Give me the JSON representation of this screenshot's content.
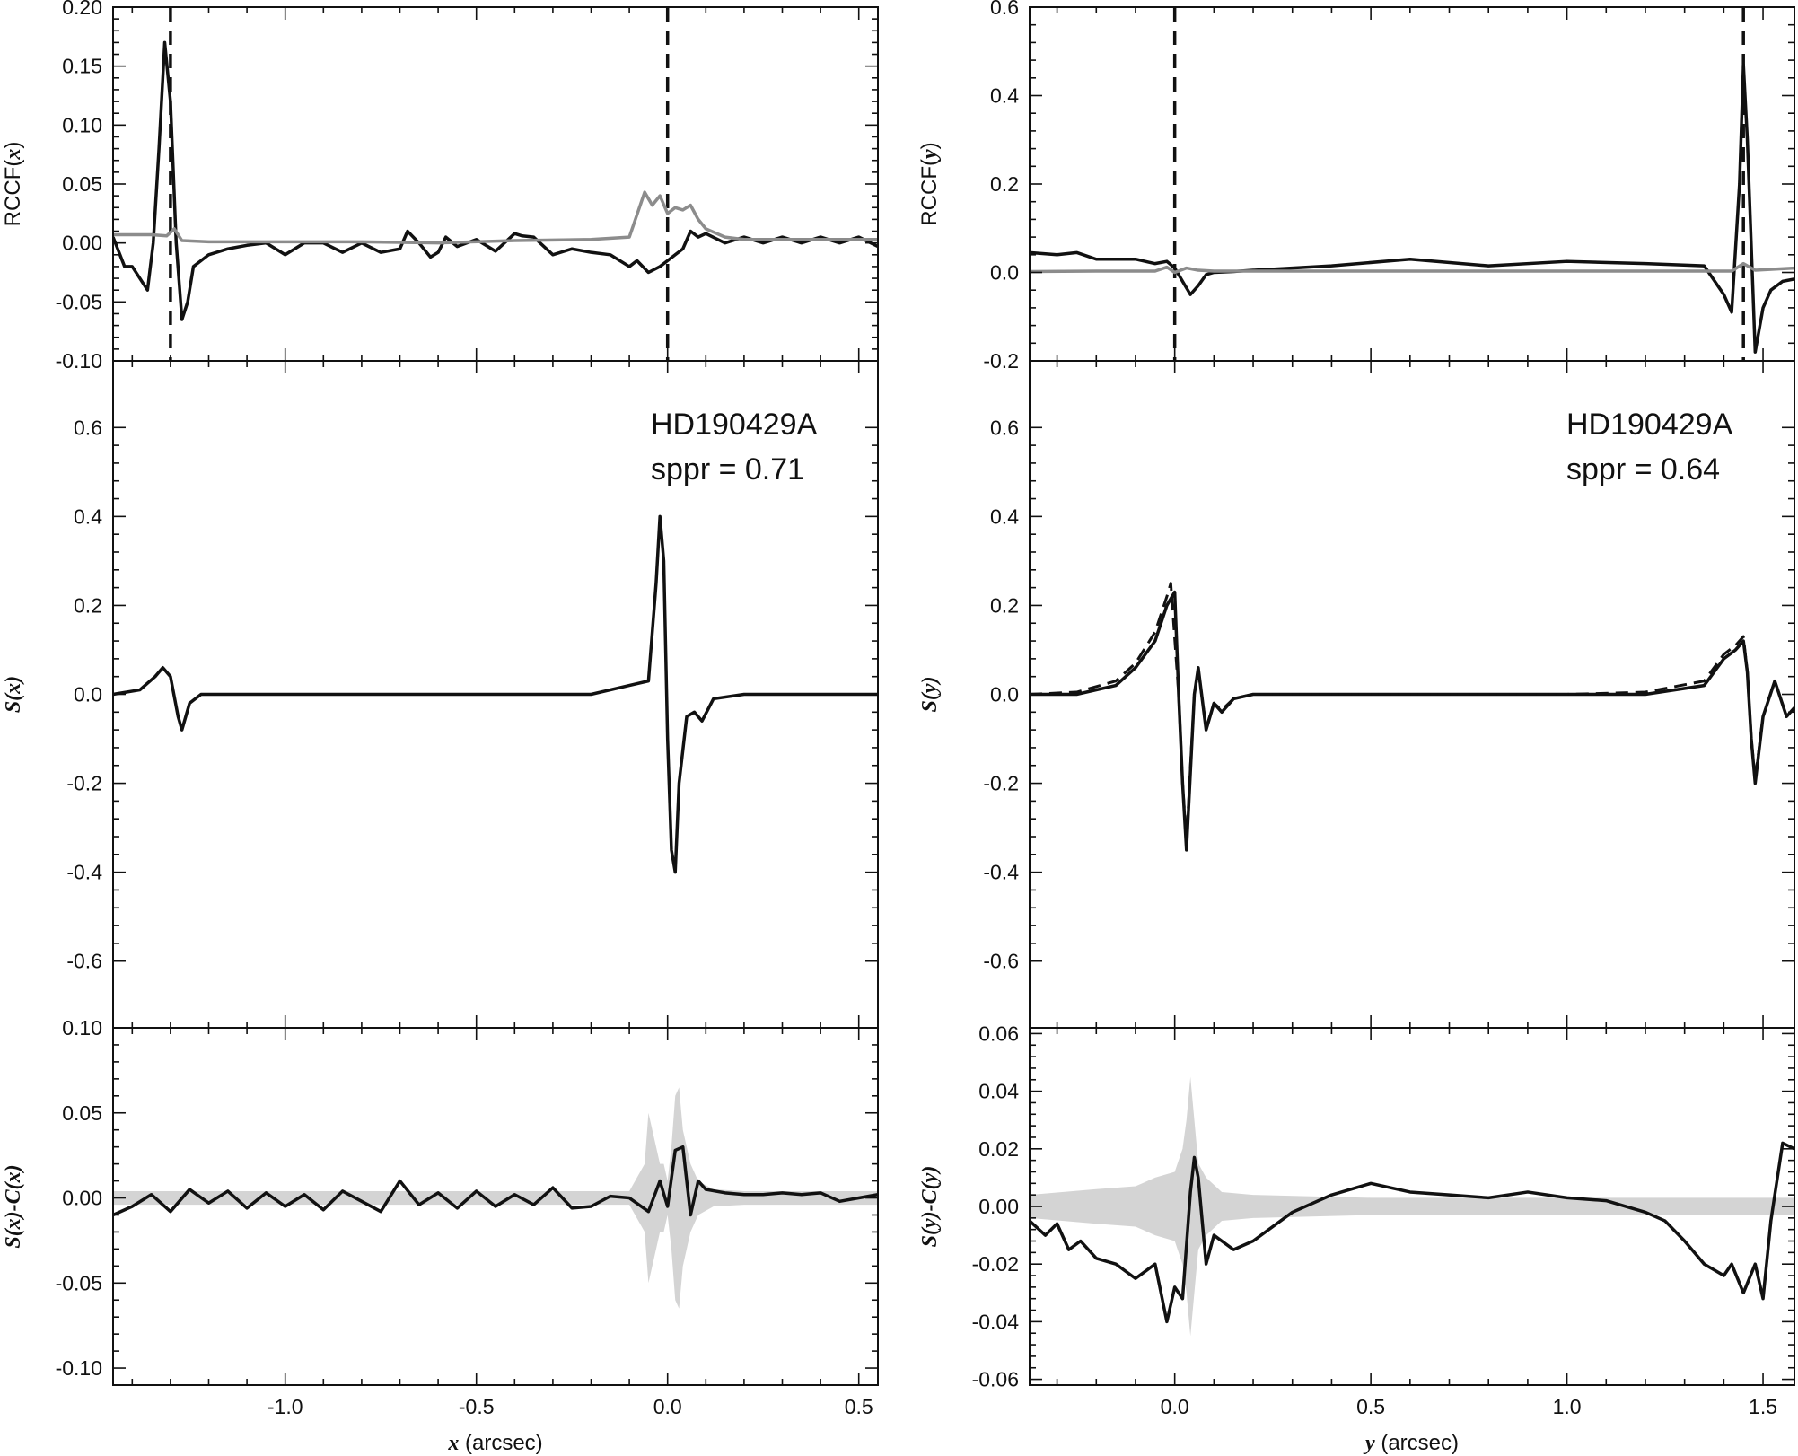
{
  "figure": {
    "left": {
      "xaxis": {
        "range": [
          -1.45,
          0.55
        ],
        "major_ticks": [
          -1.0,
          -0.5,
          0.0,
          0.5
        ],
        "tick_labels": [
          "-1.0",
          "-0.5",
          "0.0",
          "0.5"
        ],
        "minor_step": 0.1,
        "label_var": "x",
        "label_unit": " (arcsec)"
      },
      "panels": [
        {
          "id": "rccf-x",
          "ylabel_pre": "RCCF(",
          "ylabel_var": "x",
          "ylabel_post": ")",
          "ylim": [
            -0.1,
            0.2
          ],
          "yticks": [
            -0.1,
            -0.05,
            0.0,
            0.05,
            0.1,
            0.15,
            0.2
          ],
          "ytick_labels": [
            "-0.10",
            "-0.05",
            "0.00",
            "0.05",
            "0.10",
            "0.15",
            "0.20"
          ],
          "vlines": [
            -1.3,
            0.0
          ]
        },
        {
          "id": "s-x",
          "ylabel_pre": "",
          "ylabel_var": "S(x)",
          "ylabel_post": "",
          "ylim": [
            -0.75,
            0.75
          ],
          "yticks": [
            -0.6,
            -0.4,
            -0.2,
            0.0,
            0.2,
            0.4,
            0.6
          ],
          "ytick_labels": [
            "-0.6",
            "-0.4",
            "-0.2",
            "0.0",
            "0.2",
            "0.4",
            "0.6"
          ],
          "annotation": [
            "HD190429A",
            "sppr = 0.71"
          ]
        },
        {
          "id": "resid-x",
          "ylabel_pre": "",
          "ylabel_var": "S(x)-C(x)",
          "ylabel_post": "",
          "ylim": [
            -0.11,
            0.1
          ],
          "yticks": [
            -0.1,
            -0.05,
            0.0,
            0.05,
            0.1
          ],
          "ytick_labels": [
            "-0.10",
            "-0.05",
            "0.00",
            "0.05",
            "0.10"
          ]
        }
      ]
    },
    "right": {
      "xaxis": {
        "range": [
          -0.37,
          1.58
        ],
        "major_ticks": [
          0.0,
          0.5,
          1.0,
          1.5
        ],
        "tick_labels": [
          "0.0",
          "0.5",
          "1.0",
          "1.5"
        ],
        "minor_step": 0.1,
        "label_var": "y",
        "label_unit": " (arcsec)"
      },
      "panels": [
        {
          "id": "rccf-y",
          "ylabel_pre": "RCCF(",
          "ylabel_var": "y",
          "ylabel_post": ")",
          "ylim": [
            -0.2,
            0.6
          ],
          "yticks": [
            -0.2,
            0.0,
            0.2,
            0.4,
            0.6
          ],
          "ytick_labels": [
            "-0.2",
            "0.0",
            "0.2",
            "0.4",
            "0.6"
          ],
          "vlines": [
            0.0,
            1.45
          ]
        },
        {
          "id": "s-y",
          "ylabel_pre": "",
          "ylabel_var": "S(y)",
          "ylabel_post": "",
          "ylim": [
            -0.75,
            0.75
          ],
          "yticks": [
            -0.6,
            -0.4,
            -0.2,
            0.0,
            0.2,
            0.4,
            0.6
          ],
          "ytick_labels": [
            "-0.6",
            "-0.4",
            "-0.2",
            "0.0",
            "0.2",
            "0.4",
            "0.6"
          ],
          "annotation": [
            "HD190429A",
            "sppr = 0.64"
          ]
        },
        {
          "id": "resid-y",
          "ylabel_pre": "",
          "ylabel_var": "S(y)-C(y)",
          "ylabel_post": "",
          "ylim": [
            -0.062,
            0.062
          ],
          "yticks": [
            -0.06,
            -0.04,
            -0.02,
            0.0,
            0.02,
            0.04,
            0.06
          ],
          "ytick_labels": [
            "-0.06",
            "-0.04",
            "-0.02",
            "0.00",
            "0.02",
            "0.04",
            "0.06"
          ]
        }
      ]
    }
  },
  "chart_data": [
    {
      "type": "line",
      "panel": "rccf-x",
      "series": [
        {
          "style": "black",
          "x": [
            -1.45,
            -1.42,
            -1.4,
            -1.38,
            -1.36,
            -1.345,
            -1.33,
            -1.315,
            -1.3,
            -1.285,
            -1.27,
            -1.255,
            -1.24,
            -1.22,
            -1.2,
            -1.18,
            -1.15,
            -1.1,
            -1.05,
            -1.0,
            -0.95,
            -0.9,
            -0.85,
            -0.8,
            -0.75,
            -0.7,
            -0.68,
            -0.65,
            -0.62,
            -0.6,
            -0.58,
            -0.55,
            -0.5,
            -0.45,
            -0.4,
            -0.38,
            -0.35,
            -0.3,
            -0.25,
            -0.2,
            -0.15,
            -0.1,
            -0.08,
            -0.05,
            -0.02,
            0.0,
            0.02,
            0.04,
            0.06,
            0.08,
            0.1,
            0.15,
            0.2,
            0.25,
            0.3,
            0.35,
            0.4,
            0.45,
            0.5,
            0.55
          ],
          "y": [
            0.005,
            -0.02,
            -0.02,
            -0.03,
            -0.04,
            0.0,
            0.08,
            0.17,
            0.12,
            0.0,
            -0.065,
            -0.05,
            -0.02,
            -0.015,
            -0.01,
            -0.008,
            -0.005,
            -0.002,
            0.0,
            -0.01,
            0.0,
            0.0,
            -0.008,
            0.0,
            -0.008,
            -0.005,
            0.01,
            0.0,
            -0.012,
            -0.008,
            0.005,
            -0.003,
            0.003,
            -0.007,
            0.008,
            0.006,
            0.005,
            -0.01,
            -0.005,
            -0.008,
            -0.01,
            -0.02,
            -0.015,
            -0.025,
            -0.02,
            -0.015,
            -0.01,
            -0.005,
            0.01,
            0.005,
            0.008,
            0.0,
            0.005,
            0.0,
            0.005,
            0.0,
            0.005,
            0.0,
            0.005,
            -0.003
          ]
        },
        {
          "style": "gray",
          "x": [
            -1.45,
            -1.35,
            -1.31,
            -1.29,
            -1.27,
            -1.2,
            -1.0,
            -0.8,
            -0.6,
            -0.4,
            -0.2,
            -0.1,
            -0.06,
            -0.04,
            -0.02,
            0.0,
            0.02,
            0.04,
            0.06,
            0.08,
            0.1,
            0.15,
            0.2,
            0.3,
            0.4,
            0.55
          ],
          "y": [
            0.007,
            0.007,
            0.006,
            0.012,
            0.002,
            0.001,
            0.001,
            0.001,
            0.0,
            0.002,
            0.003,
            0.005,
            0.043,
            0.032,
            0.04,
            0.025,
            0.03,
            0.028,
            0.032,
            0.02,
            0.012,
            0.005,
            0.003,
            0.003,
            0.003,
            0.003
          ]
        }
      ]
    },
    {
      "type": "line",
      "panel": "s-x",
      "series": [
        {
          "style": "solid",
          "x": [
            -1.45,
            -1.38,
            -1.34,
            -1.32,
            -1.3,
            -1.28,
            -1.27,
            -1.25,
            -1.22,
            -1.2,
            -1.0,
            -0.8,
            -0.6,
            -0.4,
            -0.2,
            -0.1,
            -0.05,
            -0.03,
            -0.02,
            -0.01,
            0.0,
            0.01,
            0.02,
            0.03,
            0.05,
            0.07,
            0.09,
            0.12,
            0.2,
            0.3,
            0.4,
            0.55
          ],
          "y": [
            0.0,
            0.01,
            0.04,
            0.06,
            0.04,
            -0.05,
            -0.08,
            -0.02,
            0.0,
            0.0,
            0.0,
            0.0,
            0.0,
            0.0,
            0.0,
            0.02,
            0.03,
            0.25,
            0.4,
            0.3,
            -0.1,
            -0.35,
            -0.4,
            -0.2,
            -0.05,
            -0.04,
            -0.06,
            -0.01,
            0.0,
            0.0,
            0.0,
            0.0
          ]
        }
      ]
    },
    {
      "type": "line",
      "panel": "resid-x",
      "series": [
        {
          "style": "black",
          "x": [
            -1.45,
            -1.4,
            -1.35,
            -1.3,
            -1.25,
            -1.2,
            -1.15,
            -1.1,
            -1.05,
            -1.0,
            -0.95,
            -0.9,
            -0.85,
            -0.8,
            -0.75,
            -0.7,
            -0.65,
            -0.6,
            -0.55,
            -0.5,
            -0.45,
            -0.4,
            -0.35,
            -0.3,
            -0.25,
            -0.2,
            -0.15,
            -0.1,
            -0.05,
            -0.02,
            0.0,
            0.02,
            0.04,
            0.06,
            0.08,
            0.1,
            0.15,
            0.2,
            0.25,
            0.3,
            0.35,
            0.4,
            0.45,
            0.5,
            0.55
          ],
          "y": [
            -0.01,
            -0.005,
            0.002,
            -0.008,
            0.005,
            -0.003,
            0.004,
            -0.006,
            0.003,
            -0.005,
            0.002,
            -0.007,
            0.004,
            -0.002,
            -0.008,
            0.01,
            -0.004,
            0.003,
            -0.006,
            0.004,
            -0.005,
            0.002,
            -0.004,
            0.006,
            -0.006,
            -0.005,
            0.001,
            0.0,
            -0.008,
            0.01,
            -0.005,
            0.028,
            0.03,
            -0.01,
            0.01,
            0.005,
            0.003,
            0.002,
            0.002,
            0.003,
            0.002,
            0.003,
            -0.002,
            0.0,
            0.002
          ]
        }
      ],
      "band": {
        "x": [
          -1.45,
          -0.1,
          -0.06,
          -0.05,
          -0.04,
          -0.02,
          -0.01,
          0.0,
          0.01,
          0.02,
          0.03,
          0.04,
          0.06,
          0.08,
          0.12,
          0.2,
          0.55
        ],
        "half_width": [
          0.004,
          0.004,
          0.02,
          0.05,
          0.04,
          0.02,
          0.02,
          0.01,
          0.03,
          0.06,
          0.065,
          0.04,
          0.02,
          0.01,
          0.005,
          0.004,
          0.004
        ]
      }
    },
    {
      "type": "line",
      "panel": "rccf-y",
      "series": [
        {
          "style": "black",
          "x": [
            -0.37,
            -0.3,
            -0.25,
            -0.2,
            -0.1,
            -0.05,
            -0.02,
            0.0,
            0.02,
            0.04,
            0.06,
            0.08,
            0.1,
            0.15,
            0.2,
            0.4,
            0.6,
            0.8,
            1.0,
            1.2,
            1.35,
            1.4,
            1.42,
            1.44,
            1.45,
            1.46,
            1.48,
            1.5,
            1.52,
            1.55,
            1.58
          ],
          "y": [
            0.045,
            0.04,
            0.045,
            0.03,
            0.03,
            0.02,
            0.025,
            0.01,
            -0.02,
            -0.05,
            -0.03,
            -0.005,
            0.0,
            0.002,
            0.005,
            0.015,
            0.03,
            0.015,
            0.025,
            0.02,
            0.015,
            -0.05,
            -0.09,
            0.2,
            0.47,
            0.3,
            -0.18,
            -0.08,
            -0.04,
            -0.02,
            -0.015
          ]
        },
        {
          "style": "gray",
          "x": [
            -0.37,
            -0.2,
            -0.05,
            -0.02,
            0.0,
            0.03,
            0.06,
            0.1,
            0.3,
            0.6,
            1.0,
            1.3,
            1.42,
            1.45,
            1.48,
            1.58
          ],
          "y": [
            0.002,
            0.003,
            0.003,
            0.012,
            0.0,
            0.01,
            0.005,
            0.003,
            0.003,
            0.003,
            0.003,
            0.003,
            0.003,
            0.02,
            0.005,
            0.01
          ]
        }
      ]
    },
    {
      "type": "line",
      "panel": "s-y",
      "series": [
        {
          "style": "solid",
          "x": [
            -0.37,
            -0.25,
            -0.15,
            -0.1,
            -0.05,
            -0.02,
            0.0,
            0.01,
            0.02,
            0.03,
            0.05,
            0.06,
            0.08,
            0.1,
            0.12,
            0.15,
            0.2,
            0.4,
            0.6,
            0.8,
            1.0,
            1.2,
            1.35,
            1.4,
            1.43,
            1.45,
            1.46,
            1.47,
            1.48,
            1.5,
            1.53,
            1.56,
            1.58
          ],
          "y": [
            0.0,
            0.0,
            0.02,
            0.06,
            0.12,
            0.2,
            0.23,
            0.0,
            -0.2,
            -0.35,
            0.0,
            0.06,
            -0.08,
            -0.02,
            -0.04,
            -0.01,
            0.0,
            0.0,
            0.0,
            0.0,
            0.0,
            0.0,
            0.02,
            0.08,
            0.1,
            0.12,
            0.05,
            -0.1,
            -0.2,
            -0.05,
            0.03,
            -0.05,
            -0.03
          ]
        },
        {
          "style": "dashed",
          "x": [
            -0.37,
            -0.25,
            -0.15,
            -0.1,
            -0.05,
            -0.02,
            -0.01,
            0.01,
            0.02,
            0.03,
            0.05,
            0.06,
            0.08,
            0.1,
            0.12,
            0.15,
            0.2,
            0.4,
            0.6,
            0.8,
            1.0,
            1.2,
            1.35,
            1.4,
            1.43,
            1.45,
            1.46,
            1.47,
            1.48,
            1.5,
            1.53,
            1.56,
            1.58
          ],
          "y": [
            0.0,
            0.005,
            0.03,
            0.07,
            0.14,
            0.22,
            0.25,
            0.0,
            -0.2,
            -0.33,
            0.0,
            0.055,
            -0.075,
            -0.02,
            -0.035,
            -0.01,
            0.0,
            0.0,
            0.0,
            0.0,
            0.0,
            0.005,
            0.03,
            0.09,
            0.11,
            0.13,
            0.05,
            -0.1,
            -0.19,
            -0.05,
            0.03,
            -0.05,
            -0.03
          ]
        }
      ]
    },
    {
      "type": "line",
      "panel": "resid-y",
      "series": [
        {
          "style": "black",
          "x": [
            -0.37,
            -0.33,
            -0.3,
            -0.27,
            -0.24,
            -0.2,
            -0.15,
            -0.1,
            -0.05,
            -0.02,
            0.0,
            0.02,
            0.04,
            0.05,
            0.06,
            0.08,
            0.1,
            0.15,
            0.2,
            0.3,
            0.4,
            0.5,
            0.6,
            0.7,
            0.8,
            0.9,
            1.0,
            1.1,
            1.2,
            1.25,
            1.3,
            1.35,
            1.4,
            1.42,
            1.45,
            1.48,
            1.5,
            1.52,
            1.55,
            1.58
          ],
          "y": [
            -0.005,
            -0.01,
            -0.006,
            -0.015,
            -0.012,
            -0.018,
            -0.02,
            -0.025,
            -0.02,
            -0.04,
            -0.028,
            -0.032,
            0.005,
            0.017,
            0.01,
            -0.02,
            -0.01,
            -0.015,
            -0.012,
            -0.002,
            0.004,
            0.008,
            0.005,
            0.004,
            0.003,
            0.005,
            0.003,
            0.002,
            -0.002,
            -0.005,
            -0.012,
            -0.02,
            -0.024,
            -0.02,
            -0.03,
            -0.02,
            -0.032,
            -0.005,
            0.022,
            0.02
          ]
        }
      ],
      "band": {
        "x": [
          -0.37,
          -0.2,
          -0.1,
          -0.05,
          0.0,
          0.02,
          0.03,
          0.04,
          0.05,
          0.06,
          0.08,
          0.12,
          0.2,
          0.5,
          1.0,
          1.3,
          1.58
        ],
        "half_width": [
          0.004,
          0.006,
          0.007,
          0.01,
          0.012,
          0.02,
          0.03,
          0.045,
          0.03,
          0.015,
          0.01,
          0.005,
          0.004,
          0.003,
          0.003,
          0.003,
          0.003
        ]
      }
    }
  ]
}
